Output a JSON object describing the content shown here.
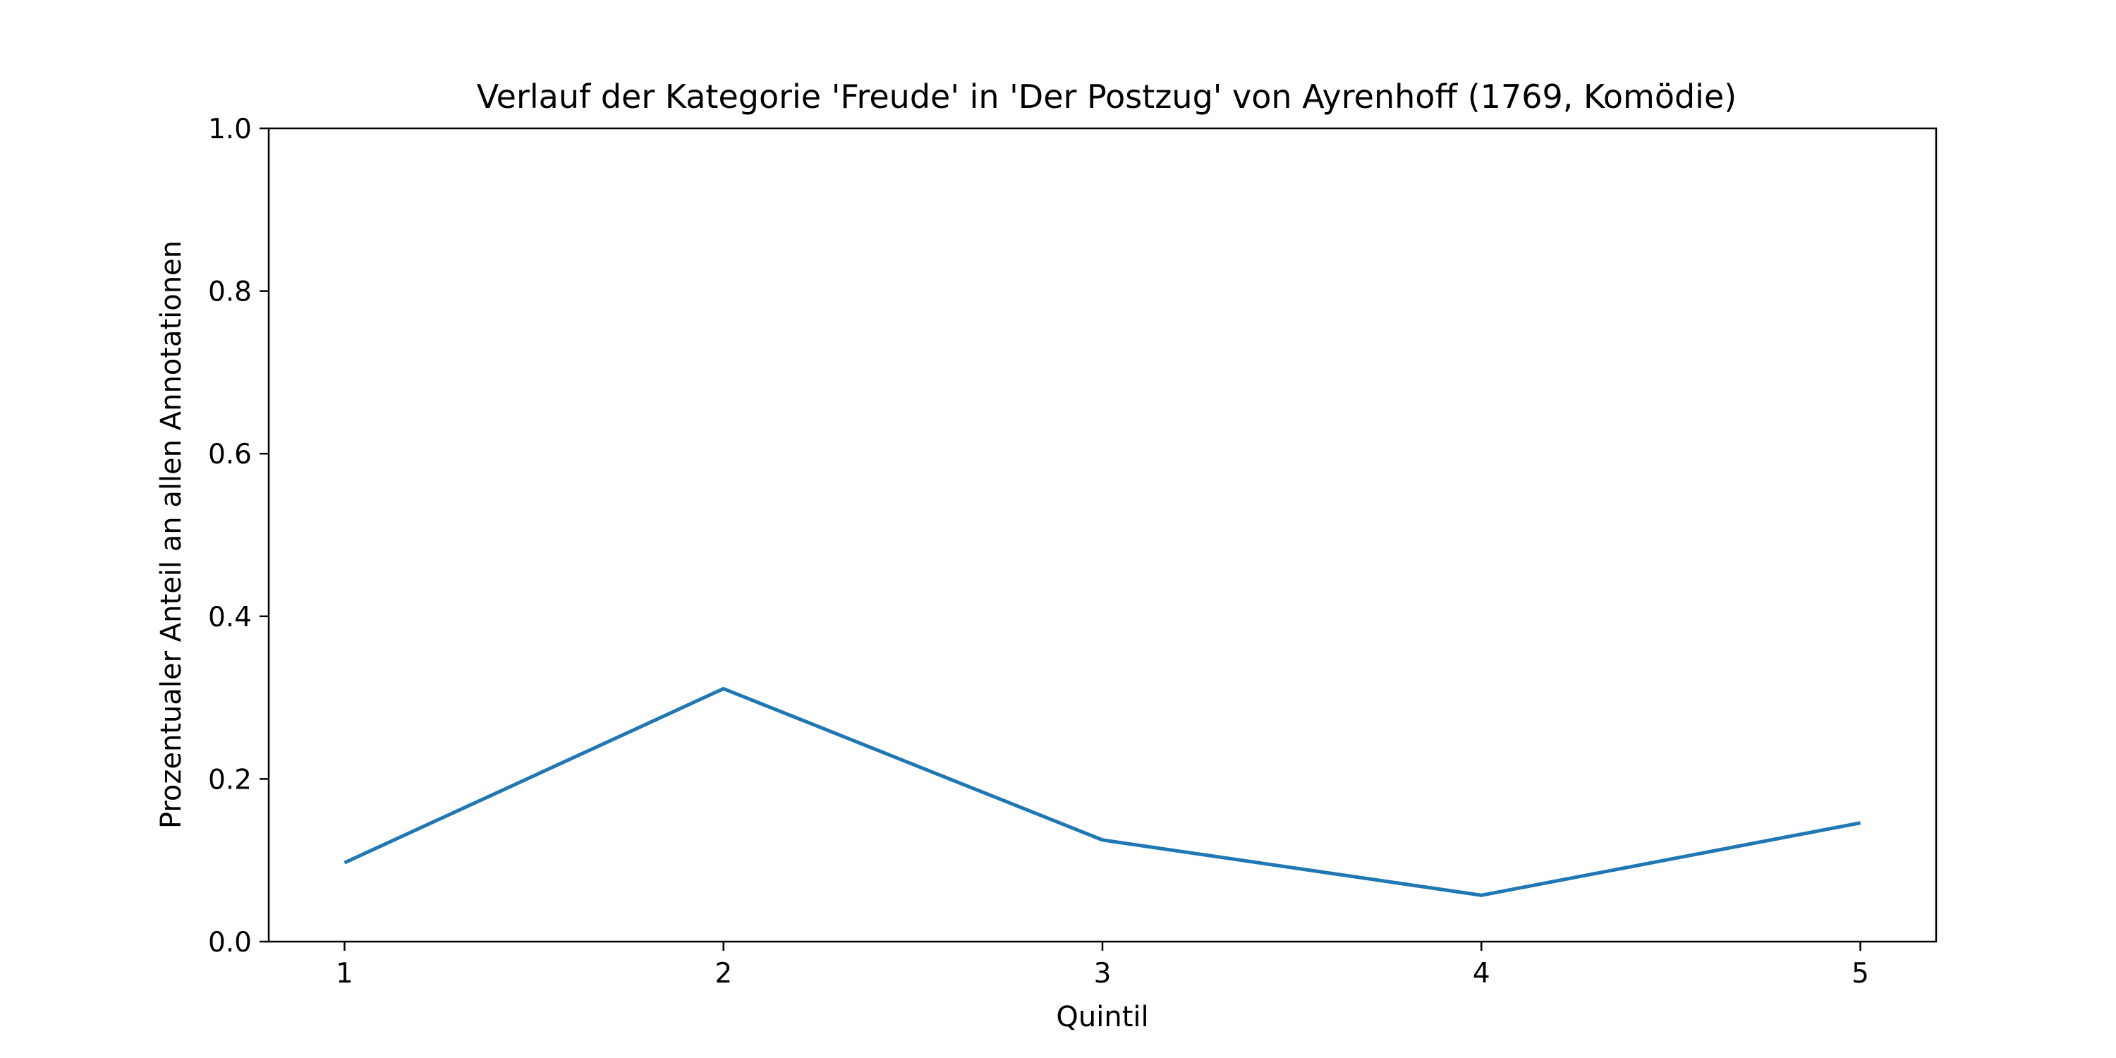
{
  "chart_data": {
    "type": "line",
    "title": "Verlauf der Kategorie 'Freude' in 'Der Postzug' von Ayrenhoff (1769, Komödie)",
    "xlabel": "Quintil",
    "ylabel": "Prozentualer Anteil an allen Annotationen",
    "x": [
      1,
      2,
      3,
      4,
      5
    ],
    "x_tick_labels": [
      "1",
      "2",
      "3",
      "4",
      "5"
    ],
    "y_ticks": [
      0.0,
      0.2,
      0.4,
      0.6,
      0.8,
      1.0
    ],
    "y_tick_labels": [
      "0.0",
      "0.2",
      "0.4",
      "0.6",
      "0.8",
      "1.0"
    ],
    "xlim": [
      0.8,
      5.2
    ],
    "ylim": [
      0.0,
      1.0
    ],
    "grid": false,
    "series": [
      {
        "values": [
          0.097,
          0.311,
          0.125,
          0.057,
          0.146
        ],
        "color": "#1f77b4"
      }
    ]
  }
}
